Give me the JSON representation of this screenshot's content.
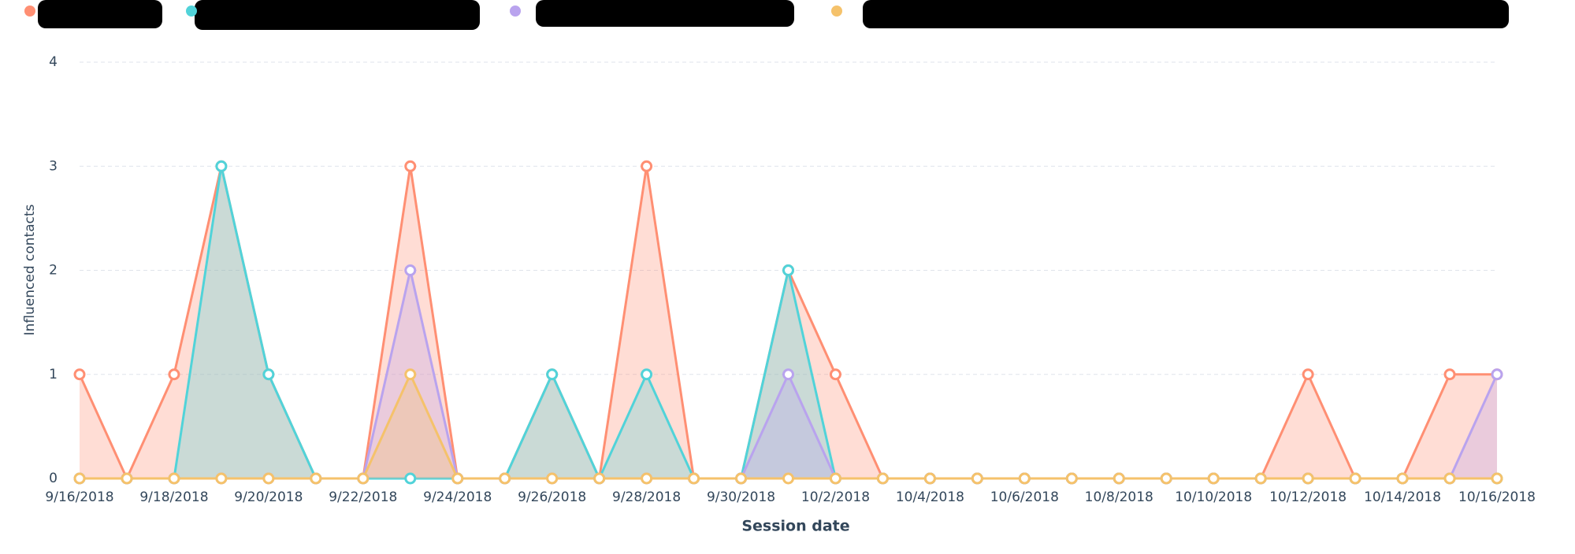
{
  "chart_data": {
    "type": "area",
    "x_label": "Session date",
    "y_label": "Influenced contacts",
    "categories": [
      "9/16/2018",
      null,
      "9/18/2018",
      null,
      "9/20/2018",
      null,
      "9/22/2018",
      null,
      "9/24/2018",
      null,
      "9/26/2018",
      null,
      "9/28/2018",
      null,
      "9/30/2018",
      null,
      "10/2/2018",
      null,
      "10/4/2018",
      null,
      "10/6/2018",
      null,
      "10/8/2018",
      null,
      "10/10/2018",
      null,
      "10/12/2018",
      null,
      "10/14/2018",
      null,
      "10/16/2018"
    ],
    "series": [
      {
        "color": "#ff8f73",
        "values": [
          1,
          0,
          1,
          3,
          1,
          0,
          0,
          3,
          0,
          0,
          1,
          0,
          3,
          0,
          0,
          2,
          1,
          0,
          0,
          0,
          0,
          0,
          0,
          0,
          0,
          0,
          1,
          0,
          0,
          1,
          1
        ]
      },
      {
        "color": "#51d3d9",
        "values": [
          0,
          0,
          0,
          3,
          1,
          0,
          0,
          0,
          0,
          0,
          1,
          0,
          1,
          0,
          0,
          2,
          0,
          0,
          0,
          0,
          0,
          0,
          0,
          0,
          0,
          0,
          0,
          0,
          0,
          0,
          0
        ]
      },
      {
        "color": "#b9a3ee",
        "values": [
          0,
          0,
          0,
          0,
          0,
          0,
          0,
          2,
          0,
          0,
          0,
          0,
          0,
          0,
          0,
          1,
          0,
          0,
          0,
          0,
          0,
          0,
          0,
          0,
          0,
          0,
          0,
          0,
          0,
          0,
          1
        ]
      },
      {
        "color": "#f5c26b",
        "values": [
          0,
          0,
          0,
          0,
          0,
          0,
          0,
          1,
          0,
          0,
          0,
          0,
          0,
          0,
          0,
          0,
          0,
          0,
          0,
          0,
          0,
          0,
          0,
          0,
          0,
          0,
          0,
          0,
          0,
          0,
          0
        ]
      }
    ],
    "ylim": [
      0,
      4
    ],
    "yticks": [
      0,
      1,
      2,
      3,
      4
    ],
    "grid": true
  }
}
